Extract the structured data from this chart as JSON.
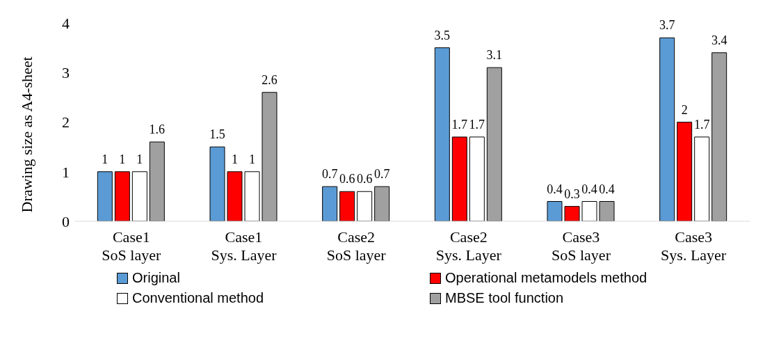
{
  "chart_data": {
    "type": "bar",
    "ylabel": "Drawing size as A4-sheet",
    "categories": [
      "Case1 SoS layer",
      "Case1 Sys. Layer",
      "Case2 SoS layer",
      "Case2 Sys. Layer",
      "Case3 SoS layer",
      "Case3 Sys. Layer"
    ],
    "series": [
      {
        "name": "Original",
        "color": "#5b9bd5",
        "values": [
          1,
          1.5,
          0.7,
          3.5,
          0.4,
          3.7
        ]
      },
      {
        "name": "Operational metamodels method",
        "color": "#ff0000",
        "values": [
          1,
          1,
          0.6,
          1.7,
          0.3,
          2
        ]
      },
      {
        "name": "Conventional method",
        "color": "#ffffff",
        "values": [
          1,
          1,
          0.6,
          1.7,
          0.4,
          1.7
        ]
      },
      {
        "name": "MBSE tool function",
        "color": "#a0a0a0",
        "values": [
          1.6,
          2.6,
          0.7,
          3.1,
          0.4,
          3.4
        ]
      }
    ],
    "ylim": [
      0,
      4
    ],
    "yticks": [
      0,
      1,
      2,
      3,
      4
    ],
    "data_labels": true,
    "legend": "bottom"
  }
}
